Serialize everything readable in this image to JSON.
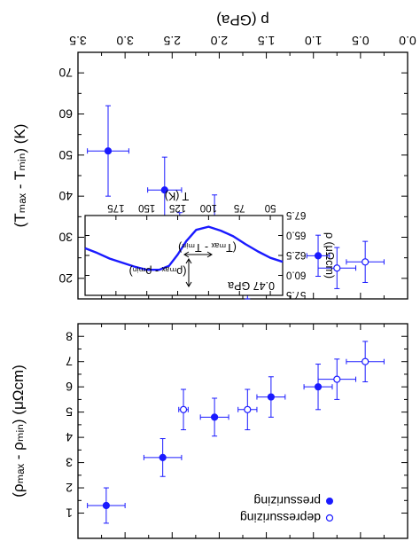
{
  "figure": {
    "top_axis_label": "p (GPa)",
    "panel_a_ylabel": "(Tₘₐₓ - Tₘᵢₙ) (K)",
    "panel_b_ylabel": "(ρₘₐₓ - ρₘᵢₙ) (μΩcm)"
  },
  "chart_data": [
    {
      "id": "panel-a",
      "type": "scatter",
      "x_axis": {
        "label": "p (GPa)",
        "ticks": [
          0.0,
          0.5,
          1.0,
          1.5,
          2.0,
          2.5,
          3.0,
          3.5
        ],
        "tick_labels": [
          "0.0",
          "0.5",
          "1.0",
          "1.5",
          "2.0",
          "2.5",
          "3.0",
          "3.5"
        ],
        "range": [
          0.0,
          3.5
        ],
        "position": "top",
        "direction": "reversed"
      },
      "y_axis": {
        "label": "(Tₘₐₓ - Tₘᵢₙ) (K)",
        "ticks": [
          20,
          30,
          40,
          50,
          60,
          70
        ],
        "tick_labels": [
          "20",
          "30",
          "40",
          "50",
          "60",
          "70"
        ],
        "range": [
          15,
          75
        ],
        "direction": "inverted"
      },
      "series": [
        {
          "name": "pressurizing",
          "marker": "filled-circle",
          "color": "#1a1aff",
          "points": [
            {
              "x": 0.95,
              "y": 25.5,
              "xerr": 0.12,
              "yerr": 5
            },
            {
              "x": 1.45,
              "y": 28.0,
              "xerr": 0.08,
              "yerr": 6
            },
            {
              "x": 2.05,
              "y": 34.3,
              "xerr": 0.12,
              "yerr": 6
            },
            {
              "x": 2.58,
              "y": 41.5,
              "xerr": 0.18,
              "yerr": 8
            },
            {
              "x": 3.18,
              "y": 51.0,
              "xerr": 0.22,
              "yerr": 11
            }
          ]
        },
        {
          "name": "depressurizing",
          "marker": "open-circle",
          "color": "#1a1aff",
          "points": [
            {
              "x": 0.45,
              "y": 24.0,
              "xerr": 0.2,
              "yerr": 5
            },
            {
              "x": 0.75,
              "y": 22.5,
              "xerr": 0.2,
              "yerr": 5
            },
            {
              "x": 1.7,
              "y": 20.0,
              "xerr": 0.1,
              "yerr": 5
            },
            {
              "x": 2.42,
              "y": 30.0,
              "xerr": 0.05,
              "yerr": 6
            }
          ]
        }
      ]
    },
    {
      "id": "panel-a-inset",
      "type": "line",
      "annotation": "0.47 GPa",
      "x_axis": {
        "label": "T (K)",
        "ticks": [
          50,
          75,
          100,
          125,
          150,
          175
        ],
        "tick_labels": [
          "50",
          "75",
          "100",
          "125",
          "150",
          "175"
        ],
        "range": [
          40,
          200
        ],
        "position": "top",
        "direction": "reversed"
      },
      "y_axis": {
        "label": "ρ (μΩcm)",
        "ticks": [
          57.5,
          60.0,
          62.5,
          65.0,
          67.5
        ],
        "tick_labels": [
          "57.5",
          "60.0",
          "62.5",
          "65.0",
          "67.5"
        ],
        "range": [
          57.5,
          67.5
        ],
        "position": "left",
        "direction": "inverted"
      },
      "annotations": [
        {
          "text": "(Tₘₐₓ - Tₘᵢₙ)"
        },
        {
          "text": "(ρₘₐₓ - ρₘᵢₙ)"
        }
      ],
      "series": [
        {
          "name": "",
          "color": "#1a1aff",
          "x": [
            40,
            50,
            60,
            70,
            80,
            90,
            100,
            110,
            118,
            125,
            132,
            140,
            150,
            160,
            170,
            180,
            190,
            200
          ],
          "y": [
            61.7,
            62.2,
            63.0,
            63.9,
            64.9,
            65.6,
            66.1,
            65.7,
            64.3,
            62.6,
            61.2,
            60.7,
            60.7,
            61.1,
            61.6,
            62.1,
            62.8,
            63.4
          ]
        }
      ]
    },
    {
      "id": "panel-b",
      "type": "scatter",
      "x_axis": {
        "range": [
          0.0,
          3.5
        ],
        "direction": "reversed"
      },
      "y_axis": {
        "label": "(ρₘₐₓ - ρₘᵢₙ) (μΩcm)",
        "ticks": [
          1,
          2,
          3,
          4,
          5,
          6,
          7,
          8
        ],
        "tick_labels": [
          "1",
          "2",
          "3",
          "4",
          "5",
          "6",
          "7",
          "8"
        ],
        "range": [
          0,
          8.5
        ],
        "direction": "inverted"
      },
      "series": [
        {
          "name": "pressurizing",
          "marker": "filled-circle",
          "color": "#1a1aff",
          "points": [
            {
              "x": 0.95,
              "y": 6.0,
              "xerr": 0.15,
              "yerr": 0.9
            },
            {
              "x": 1.45,
              "y": 5.6,
              "xerr": 0.15,
              "yerr": 0.8
            },
            {
              "x": 2.05,
              "y": 4.8,
              "xerr": 0.15,
              "yerr": 0.75
            },
            {
              "x": 2.6,
              "y": 3.2,
              "xerr": 0.2,
              "yerr": 0.75
            },
            {
              "x": 3.2,
              "y": 1.3,
              "xerr": 0.2,
              "yerr": 0.7
            }
          ]
        },
        {
          "name": "depressurizing",
          "marker": "open-circle",
          "color": "#1a1aff",
          "points": [
            {
              "x": 0.45,
              "y": 7.0,
              "xerr": 0.2,
              "yerr": 0.8
            },
            {
              "x": 0.75,
              "y": 6.3,
              "xerr": 0.2,
              "yerr": 0.8
            },
            {
              "x": 1.7,
              "y": 5.1,
              "xerr": 0.1,
              "yerr": 0.8
            },
            {
              "x": 2.38,
              "y": 5.1,
              "xerr": 0.05,
              "yerr": 0.8
            }
          ]
        }
      ],
      "legend": {
        "placement": "bottom-left",
        "entries": [
          "pressurizing",
          "depressurizing"
        ]
      }
    }
  ]
}
